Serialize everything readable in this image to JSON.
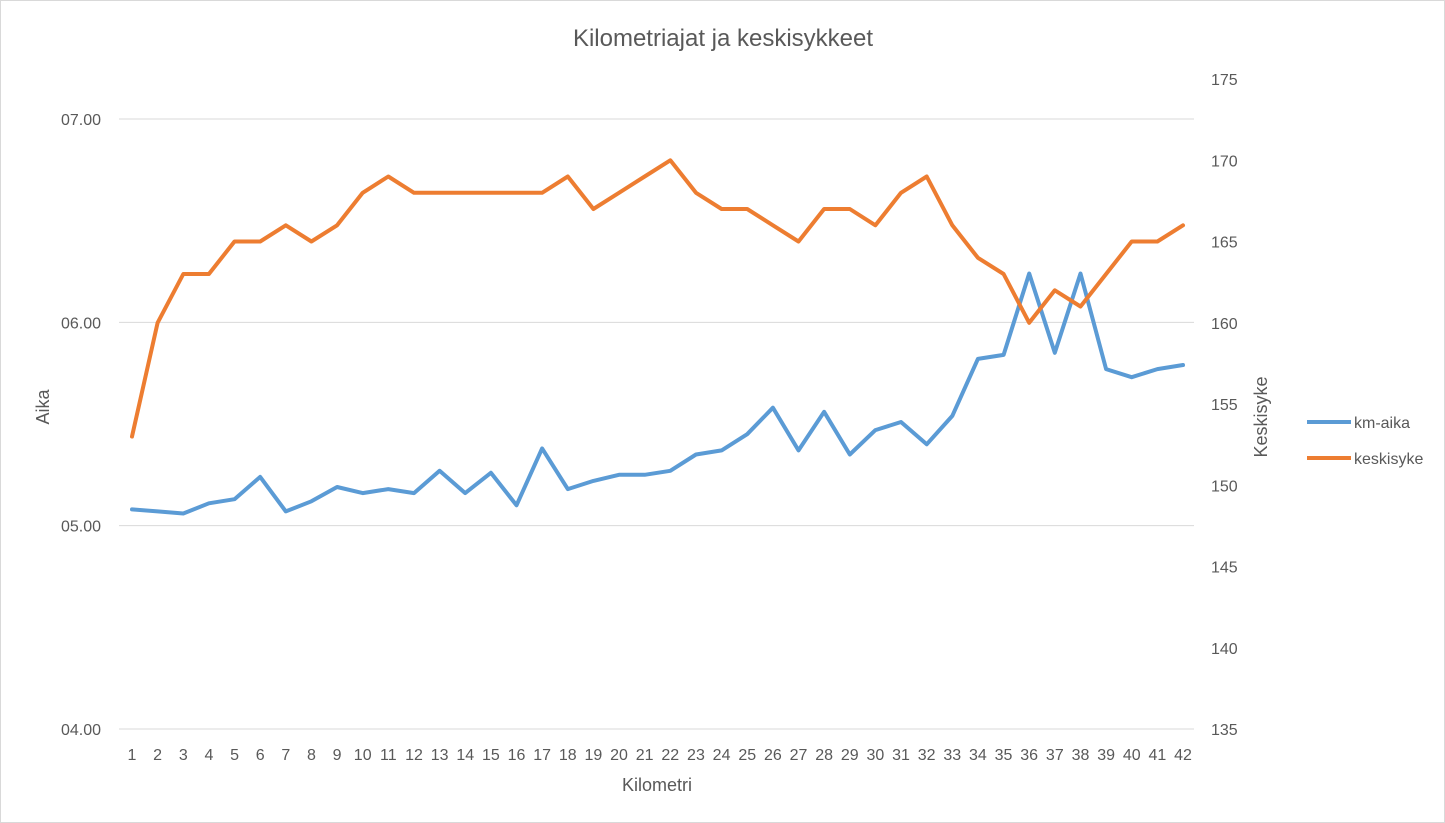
{
  "chart_data": {
    "type": "line",
    "title": "Kilometriajat ja keskisykkeet",
    "xlabel": "Kilometri",
    "ylabel_left": "Aika",
    "ylabel_right": "Keskisyke",
    "x": [
      1,
      2,
      3,
      4,
      5,
      6,
      7,
      8,
      9,
      10,
      11,
      12,
      13,
      14,
      15,
      16,
      17,
      18,
      19,
      20,
      21,
      22,
      23,
      24,
      25,
      26,
      27,
      28,
      29,
      30,
      31,
      32,
      33,
      34,
      35,
      36,
      37,
      38,
      39,
      40,
      41,
      42
    ],
    "y_left": {
      "ticks": [
        4,
        5,
        6,
        7
      ],
      "tick_labels": [
        "04.00",
        "05.00",
        "06.00",
        "07.00"
      ],
      "range": [
        4,
        7.5
      ]
    },
    "y_right": {
      "ticks": [
        135,
        140,
        145,
        150,
        155,
        160,
        165,
        170,
        175
      ],
      "tick_labels": [
        "135",
        "140",
        "145",
        "150",
        "155",
        "160",
        "165",
        "170",
        "175"
      ],
      "range": [
        135,
        177
      ]
    },
    "gridlines": "horizontal, left axis major",
    "legend_position": "right",
    "series": [
      {
        "name": "km-aika",
        "axis": "left",
        "color": "#5b9bd5",
        "values": [
          5.08,
          5.07,
          5.06,
          5.11,
          5.13,
          5.24,
          5.07,
          5.12,
          5.19,
          5.16,
          5.18,
          5.16,
          5.27,
          5.16,
          5.26,
          5.1,
          5.38,
          5.18,
          5.22,
          5.25,
          5.25,
          5.27,
          5.35,
          5.37,
          5.45,
          5.58,
          5.37,
          5.56,
          5.35,
          5.47,
          5.51,
          5.4,
          5.54,
          5.82,
          5.84,
          6.24,
          5.85,
          6.24,
          5.77,
          5.73,
          5.77,
          5.79
        ]
      },
      {
        "name": "keskisyke",
        "axis": "right",
        "color": "#ed7d31",
        "values": [
          153,
          160,
          163,
          163,
          165,
          165,
          166,
          165,
          166,
          168,
          169,
          168,
          168,
          168,
          168,
          168,
          168,
          169,
          167,
          168,
          169,
          170,
          168,
          167,
          167,
          166,
          165,
          167,
          167,
          166,
          168,
          169,
          166,
          164,
          163,
          160,
          162,
          161,
          163,
          165,
          165,
          166
        ]
      }
    ]
  }
}
